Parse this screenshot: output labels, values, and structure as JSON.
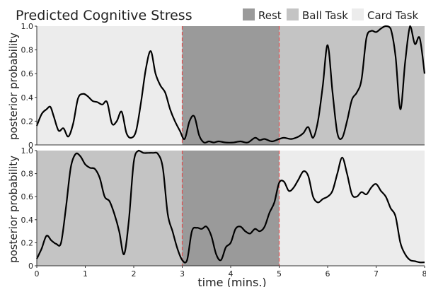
{
  "title": "Predicted Cognitive Stress",
  "legend": [
    {
      "label": "Rest",
      "color": "#9a9a9a"
    },
    {
      "label": "Ball Task",
      "color": "#c4c4c4"
    },
    {
      "label": "Card Task",
      "color": "#ececec"
    }
  ],
  "xlabel": "time (mins.)",
  "ylabel": "posterior probability",
  "boundary_color": "#e05050",
  "line_color": "#000000",
  "chart_data": [
    {
      "type": "line",
      "title": "Predicted Cognitive Stress",
      "xlabel": "",
      "ylabel": "posterior probability",
      "xlim": [
        0,
        8
      ],
      "ylim": [
        0,
        1.0
      ],
      "x_ticks": [],
      "y_ticks": [
        "0",
        "0.2",
        "0.4",
        "0.6",
        "0.8",
        "1.0"
      ],
      "phases": [
        {
          "label": "Card Task",
          "start": 0,
          "end": 3
        },
        {
          "label": "Rest",
          "start": 3,
          "end": 5
        },
        {
          "label": "Ball Task",
          "start": 5,
          "end": 8
        }
      ],
      "boundaries": [
        3,
        5
      ],
      "x": [
        0,
        0.1,
        0.2,
        0.28,
        0.35,
        0.45,
        0.55,
        0.65,
        0.75,
        0.85,
        0.95,
        1.05,
        1.15,
        1.25,
        1.35,
        1.45,
        1.55,
        1.65,
        1.75,
        1.85,
        1.95,
        2.05,
        2.15,
        2.25,
        2.35,
        2.45,
        2.55,
        2.65,
        2.75,
        2.85,
        2.95,
        3.05,
        3.15,
        3.25,
        3.35,
        3.45,
        3.55,
        3.65,
        3.75,
        3.9,
        4.05,
        4.2,
        4.35,
        4.5,
        4.6,
        4.7,
        4.85,
        5.0,
        5.1,
        5.25,
        5.4,
        5.5,
        5.6,
        5.7,
        5.8,
        5.9,
        6.0,
        6.1,
        6.2,
        6.3,
        6.4,
        6.5,
        6.6,
        6.7,
        6.8,
        6.9,
        7.0,
        7.1,
        7.2,
        7.3,
        7.4,
        7.5,
        7.6,
        7.7,
        7.8,
        7.9,
        8.0
      ],
      "y": [
        0.16,
        0.26,
        0.3,
        0.32,
        0.24,
        0.12,
        0.14,
        0.07,
        0.18,
        0.39,
        0.43,
        0.41,
        0.37,
        0.36,
        0.34,
        0.36,
        0.18,
        0.2,
        0.28,
        0.1,
        0.06,
        0.12,
        0.36,
        0.64,
        0.79,
        0.6,
        0.5,
        0.44,
        0.3,
        0.2,
        0.12,
        0.05,
        0.2,
        0.24,
        0.08,
        0.02,
        0.03,
        0.02,
        0.03,
        0.02,
        0.02,
        0.03,
        0.02,
        0.06,
        0.04,
        0.05,
        0.03,
        0.05,
        0.06,
        0.05,
        0.07,
        0.1,
        0.15,
        0.06,
        0.2,
        0.5,
        0.84,
        0.45,
        0.1,
        0.06,
        0.2,
        0.38,
        0.44,
        0.55,
        0.9,
        0.96,
        0.95,
        0.98,
        1.0,
        0.98,
        0.75,
        0.3,
        0.7,
        1.0,
        0.85,
        0.9,
        0.6
      ],
      "series_name": ""
    },
    {
      "type": "line",
      "xlabel": "time (mins.)",
      "ylabel": "posterior probability",
      "xlim": [
        0,
        8
      ],
      "ylim": [
        0,
        1.0
      ],
      "x_ticks": [
        "0",
        "1",
        "2",
        "3",
        "4",
        "5",
        "6",
        "7",
        "8"
      ],
      "y_ticks": [
        "0",
        "0.2",
        "0.4",
        "0.6",
        "0.8",
        "1.0"
      ],
      "phases": [
        {
          "label": "Ball Task",
          "start": 0,
          "end": 3
        },
        {
          "label": "Rest",
          "start": 3,
          "end": 5
        },
        {
          "label": "Card Task",
          "start": 5,
          "end": 8
        }
      ],
      "boundaries": [
        3,
        5
      ],
      "x": [
        0,
        0.1,
        0.2,
        0.3,
        0.4,
        0.5,
        0.6,
        0.7,
        0.8,
        0.9,
        1.0,
        1.1,
        1.2,
        1.3,
        1.4,
        1.5,
        1.6,
        1.7,
        1.8,
        1.9,
        2.0,
        2.1,
        2.2,
        2.3,
        2.4,
        2.5,
        2.6,
        2.7,
        2.8,
        2.9,
        3.0,
        3.1,
        3.2,
        3.3,
        3.4,
        3.5,
        3.6,
        3.7,
        3.8,
        3.9,
        4.0,
        4.1,
        4.2,
        4.3,
        4.4,
        4.5,
        4.6,
        4.7,
        4.8,
        4.9,
        5.0,
        5.1,
        5.2,
        5.3,
        5.4,
        5.5,
        5.6,
        5.7,
        5.8,
        5.9,
        6.0,
        6.1,
        6.2,
        6.3,
        6.4,
        6.5,
        6.6,
        6.7,
        6.8,
        6.9,
        7.0,
        7.1,
        7.2,
        7.3,
        7.4,
        7.5,
        7.6,
        7.7,
        7.8,
        7.9,
        8.0
      ],
      "y": [
        0.06,
        0.15,
        0.26,
        0.22,
        0.19,
        0.2,
        0.5,
        0.85,
        0.97,
        0.95,
        0.88,
        0.85,
        0.84,
        0.76,
        0.6,
        0.56,
        0.45,
        0.3,
        0.1,
        0.4,
        0.9,
        1.0,
        0.98,
        0.98,
        0.98,
        0.97,
        0.85,
        0.45,
        0.3,
        0.15,
        0.05,
        0.05,
        0.3,
        0.33,
        0.32,
        0.34,
        0.26,
        0.1,
        0.05,
        0.16,
        0.2,
        0.32,
        0.34,
        0.3,
        0.28,
        0.32,
        0.3,
        0.34,
        0.46,
        0.55,
        0.72,
        0.73,
        0.65,
        0.68,
        0.75,
        0.82,
        0.78,
        0.6,
        0.55,
        0.58,
        0.6,
        0.65,
        0.8,
        0.94,
        0.8,
        0.62,
        0.6,
        0.64,
        0.62,
        0.68,
        0.71,
        0.65,
        0.6,
        0.5,
        0.43,
        0.2,
        0.1,
        0.05,
        0.04,
        0.03,
        0.03
      ],
      "series_name": ""
    }
  ]
}
